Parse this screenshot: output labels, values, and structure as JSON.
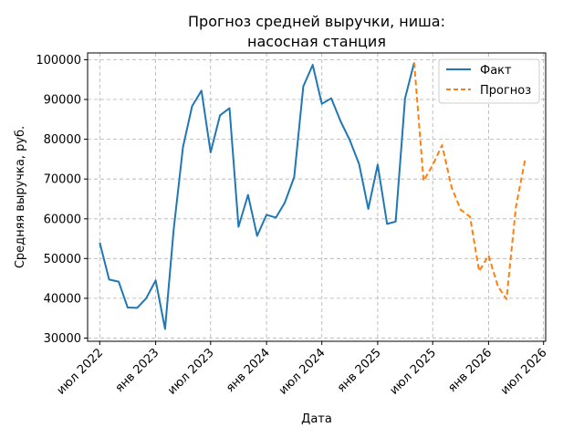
{
  "chart_data": {
    "type": "line",
    "title": [
      "Прогноз средней выручки, ниша:",
      "насосная станция"
    ],
    "xlabel": "Дата",
    "ylabel": "Средняя выручка, руб.",
    "ylim": [
      29200,
      101700
    ],
    "yticks": [
      30000,
      40000,
      50000,
      60000,
      70000,
      80000,
      90000,
      100000
    ],
    "yticklabels": [
      "30000",
      "40000",
      "50000",
      "60000",
      "70000",
      "80000",
      "90000",
      "100000"
    ],
    "xlim": [
      "2022-05-22",
      "2026-07-08"
    ],
    "xticks": [
      "2022-07-01",
      "2023-01-01",
      "2023-07-01",
      "2024-01-01",
      "2024-07-01",
      "2025-01-01",
      "2025-07-01",
      "2026-01-01",
      "2026-07-01"
    ],
    "xticklabels": [
      "июл 2022",
      "янв 2023",
      "июл 2023",
      "янв 2024",
      "июл 2024",
      "янв 2025",
      "июл 2025",
      "янв 2026",
      "июл 2026"
    ],
    "grid": true,
    "legend_position": "top-right",
    "colors": {
      "fact": "#1f77b4",
      "forecast": "#ff7f0e"
    },
    "series": [
      {
        "name": "Факт",
        "style": "solid",
        "x": [
          "2022-07-01",
          "2022-08-01",
          "2022-09-01",
          "2022-10-01",
          "2022-11-01",
          "2022-12-01",
          "2023-01-01",
          "2023-02-01",
          "2023-03-01",
          "2023-04-01",
          "2023-05-01",
          "2023-06-01",
          "2023-07-01",
          "2023-08-01",
          "2023-09-01",
          "2023-10-01",
          "2023-11-01",
          "2023-12-01",
          "2024-01-01",
          "2024-02-01",
          "2024-03-01",
          "2024-04-01",
          "2024-05-01",
          "2024-06-01",
          "2024-07-01",
          "2024-08-01",
          "2024-09-01",
          "2024-10-01",
          "2024-11-01",
          "2024-12-01",
          "2025-01-01",
          "2025-02-01",
          "2025-03-01",
          "2025-04-01",
          "2025-05-01"
        ],
        "values": [
          54000,
          44700,
          44200,
          37700,
          37600,
          40000,
          44500,
          32300,
          57000,
          78000,
          88300,
          92200,
          76700,
          86000,
          87800,
          58000,
          66000,
          55700,
          61000,
          60300,
          64000,
          70500,
          93300,
          98700,
          88900,
          90300,
          84500,
          79800,
          73700,
          62500,
          73600,
          58700,
          59300,
          90300,
          99300
        ]
      },
      {
        "name": "Прогноз",
        "style": "dashed",
        "x": [
          "2025-05-01",
          "2025-06-01",
          "2025-07-01",
          "2025-08-01",
          "2025-09-01",
          "2025-10-01",
          "2025-11-01",
          "2025-12-01",
          "2026-01-01",
          "2026-02-01",
          "2026-03-01",
          "2026-04-01",
          "2026-05-01"
        ],
        "values": [
          99300,
          69500,
          73500,
          78500,
          68000,
          62300,
          60500,
          46800,
          50800,
          43000,
          39800,
          63000,
          74800
        ]
      }
    ]
  }
}
